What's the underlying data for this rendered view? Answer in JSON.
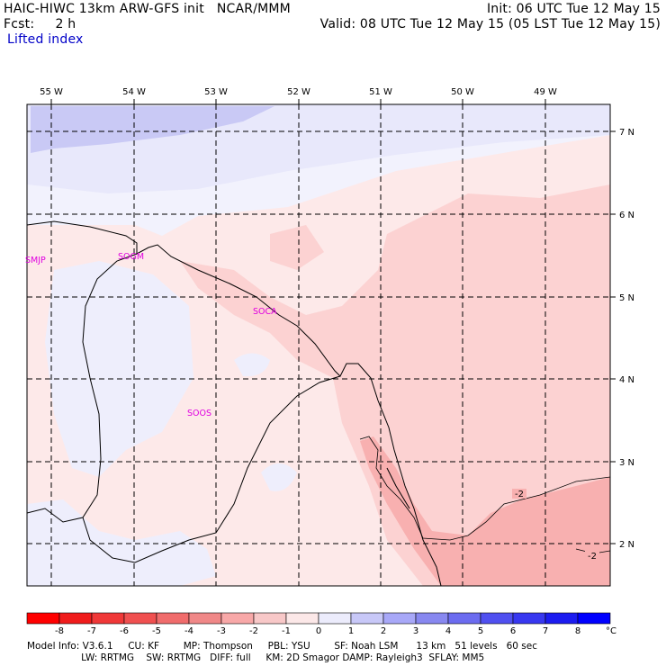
{
  "header": {
    "line1_left": "HAIC-HIWC 13km ARW-GFS init   NCAR/MMM",
    "line2_left": "Fcst:     2 h",
    "line1_right": "Init: 06 UTC Tue 12 May 15",
    "line2_right": "Valid: 08 UTC Tue 12 May 15 (05 LST Tue 12 May 15)",
    "field_name": "Lifted index"
  },
  "map": {
    "lon_labels": [
      "55 W",
      "54 W",
      "53 W",
      "52 W",
      "51 W",
      "50 W",
      "49 W"
    ],
    "lat_labels": [
      "7 N",
      "6 N",
      "5 N",
      "4 N",
      "3 N",
      "2 N"
    ],
    "stations": [
      {
        "id": "SMJP"
      },
      {
        "id": "SOGM"
      },
      {
        "id": "SOCA"
      },
      {
        "id": "SOOS"
      }
    ],
    "contour_labels": [
      "-2",
      "-2"
    ],
    "station_color": "#e000e0"
  },
  "legend": {
    "ticks": [
      "-8",
      "-7",
      "-6",
      "-5",
      "-4",
      "-3",
      "-2",
      "-1",
      "0",
      "1",
      "2",
      "3",
      "4",
      "5",
      "6",
      "7",
      "8"
    ],
    "unit": "°C",
    "colors": [
      "#ff0000",
      "#f01c1c",
      "#f03838",
      "#f05050",
      "#f06c6c",
      "#f08888",
      "#f8a8a8",
      "#f8c8c8",
      "#fce8e8",
      "#ececfc",
      "#c8c8f8",
      "#a8a8f8",
      "#8888f0",
      "#6c6cf0",
      "#5050f0",
      "#3838f0",
      "#1c1cf0",
      "#0000ff"
    ]
  },
  "footer": {
    "line1": "Model Info: V3.6.1     CU: KF        MP: Thompson     PBL: YSU        SF: Noah LSM      13 km   51 levels   60 sec",
    "line2": "                  LW: RRTMG    SW: RRTMG   DIFF: full     KM: 2D Smagor DAMP: Rayleigh3  SFLAY: MM5"
  }
}
